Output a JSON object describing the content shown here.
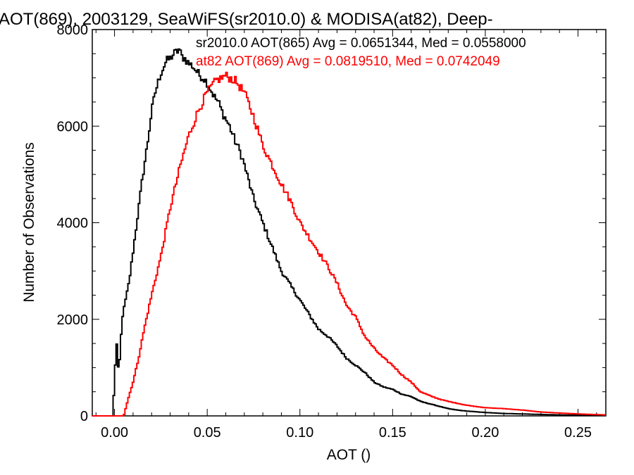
{
  "chart_data": {
    "type": "line",
    "style": "histogram-step",
    "title": "AOT(869), 2003129, SeaWiFS(sr2010.0) & MODISA(at82), Deep-",
    "xlabel": "AOT ()",
    "ylabel": "Number of Observations",
    "xlim": [
      -0.012,
      0.265
    ],
    "ylim": [
      0,
      8000
    ],
    "xticks": [
      0.0,
      0.05,
      0.1,
      0.15,
      0.2,
      0.25
    ],
    "xtick_labels": [
      "0.00",
      "0.05",
      "0.10",
      "0.15",
      "0.20",
      "0.25"
    ],
    "yticks": [
      0,
      2000,
      4000,
      6000,
      8000
    ],
    "ytick_labels": [
      "0",
      "2000",
      "4000",
      "6000",
      "8000"
    ],
    "grid": false,
    "annotations": [
      "sr2010.0 AOT(865) Avg = 0.0651344, Med = 0.0558000",
      "at82 AOT(869) Avg = 0.0819510, Med = 0.0742049"
    ],
    "series": [
      {
        "color": "#000000",
        "x": [
          -0.012,
          -0.001,
          0.0,
          0.001,
          0.002,
          0.003,
          0.004,
          0.006,
          0.008,
          0.01,
          0.012,
          0.015,
          0.018,
          0.02,
          0.022,
          0.025,
          0.028,
          0.03,
          0.032,
          0.034,
          0.035,
          0.036,
          0.038,
          0.04,
          0.042,
          0.044,
          0.046,
          0.048,
          0.05,
          0.052,
          0.054,
          0.056,
          0.058,
          0.06,
          0.062,
          0.065,
          0.068,
          0.07,
          0.075,
          0.08,
          0.085,
          0.09,
          0.095,
          0.1,
          0.105,
          0.11,
          0.115,
          0.12,
          0.125,
          0.13,
          0.135,
          0.14,
          0.145,
          0.15,
          0.155,
          0.16,
          0.165,
          0.17,
          0.175,
          0.18,
          0.185,
          0.19,
          0.2,
          0.21,
          0.22,
          0.23,
          0.24,
          0.25,
          0.265
        ],
        "y": [
          0,
          0,
          700,
          1600,
          1000,
          1200,
          2000,
          2400,
          2800,
          3400,
          4000,
          4900,
          5700,
          6300,
          6700,
          7100,
          7350,
          7400,
          7500,
          7550,
          7600,
          7450,
          7400,
          7300,
          7250,
          7150,
          7050,
          7000,
          6900,
          6750,
          6600,
          6500,
          6300,
          6150,
          6000,
          5700,
          5450,
          5200,
          4500,
          4000,
          3500,
          3000,
          2700,
          2400,
          2100,
          1800,
          1650,
          1450,
          1200,
          1050,
          900,
          700,
          600,
          550,
          450,
          400,
          300,
          250,
          200,
          150,
          120,
          100,
          70,
          50,
          40,
          30,
          20,
          15,
          10
        ]
      },
      {
        "color": "#ff0000",
        "x": [
          -0.012,
          0.005,
          0.007,
          0.01,
          0.013,
          0.016,
          0.02,
          0.025,
          0.03,
          0.035,
          0.04,
          0.045,
          0.05,
          0.055,
          0.058,
          0.06,
          0.062,
          0.065,
          0.068,
          0.07,
          0.075,
          0.08,
          0.085,
          0.09,
          0.095,
          0.1,
          0.105,
          0.11,
          0.115,
          0.12,
          0.125,
          0.13,
          0.135,
          0.14,
          0.145,
          0.15,
          0.155,
          0.16,
          0.165,
          0.17,
          0.175,
          0.18,
          0.19,
          0.2,
          0.21,
          0.22,
          0.23,
          0.24,
          0.25,
          0.265
        ],
        "y": [
          0,
          0,
          300,
          700,
          1200,
          1800,
          2500,
          3300,
          4300,
          5100,
          5800,
          6300,
          6700,
          6950,
          7000,
          7050,
          7000,
          6950,
          6800,
          6700,
          6200,
          5600,
          5200,
          4800,
          4450,
          4000,
          3700,
          3400,
          3100,
          2750,
          2300,
          2050,
          1650,
          1400,
          1200,
          1050,
          850,
          700,
          500,
          420,
          350,
          300,
          220,
          170,
          150,
          120,
          80,
          60,
          40,
          20
        ]
      }
    ]
  }
}
